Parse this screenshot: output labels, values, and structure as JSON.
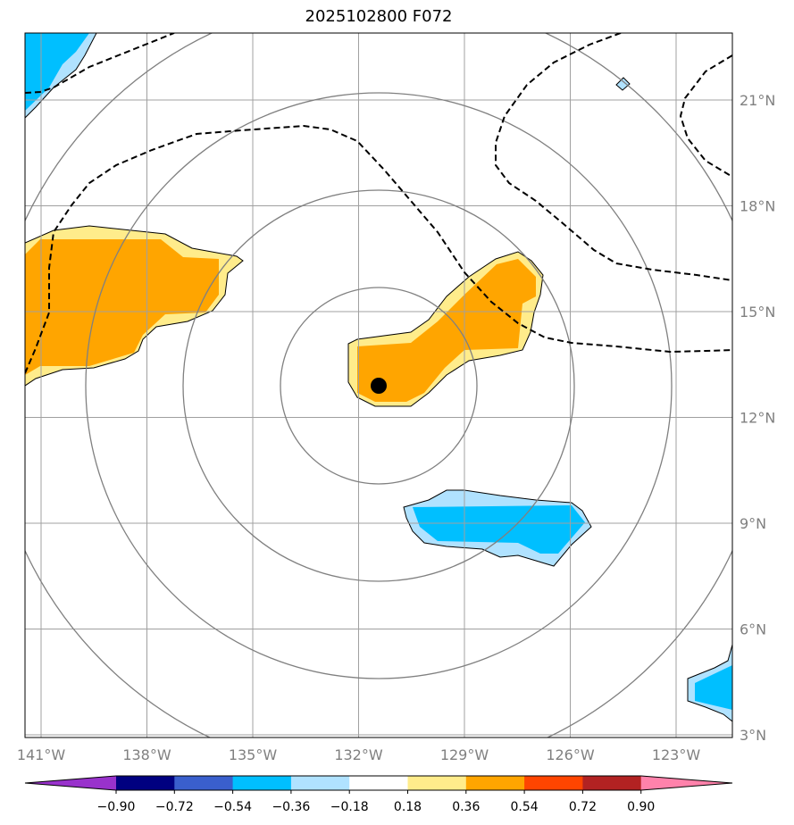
{
  "title": "2025102800 F072",
  "map": {
    "lon_labels": [
      "141°W",
      "138°W",
      "135°W",
      "132°W",
      "129°W",
      "126°W",
      "123°W"
    ],
    "lat_labels": [
      "21°N",
      "18°N",
      "15°N",
      "12°N",
      "9°N",
      "6°N",
      "3°N"
    ],
    "center_marker": {
      "lon_w": 131.4,
      "lat_n": 12.9
    }
  },
  "chart_data": {
    "type": "heatmap",
    "title": "2025102800 F072",
    "xlim_lon": [
      -141.5,
      -121.4
    ],
    "ylim_lat": [
      2.9,
      22.9
    ],
    "colorbar": {
      "ticks": [
        "−0.90",
        "−0.72",
        "−0.54",
        "−0.36",
        "−0.18",
        "0.18",
        "0.36",
        "0.54",
        "0.72",
        "0.90"
      ],
      "levels": [
        -0.9,
        -0.72,
        -0.54,
        -0.36,
        -0.18,
        0.18,
        0.36,
        0.54,
        0.72,
        0.9
      ],
      "colors": [
        "#9932cc",
        "#000080",
        "#3a5fcd",
        "#00bfff",
        "#b0e2ff",
        "#ffffff",
        "#ffec8b",
        "#ffa500",
        "#ff4500",
        "#b22222",
        "#ff82ab"
      ],
      "extend": "both"
    }
  }
}
